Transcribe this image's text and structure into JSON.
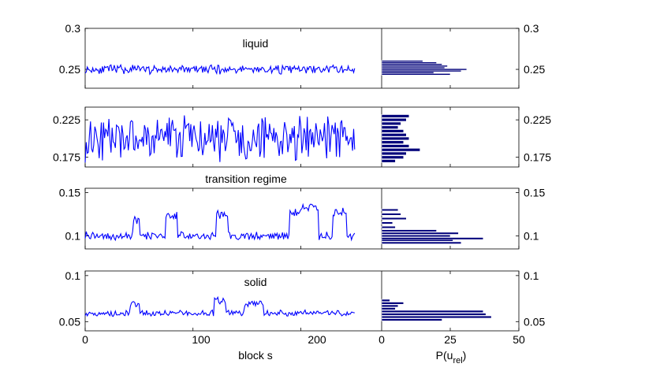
{
  "colors": {
    "series": "#0000ff",
    "histogram": "#00007a",
    "axes": "#000000",
    "background": "#ffffff"
  },
  "x_axis": {
    "label": "block s",
    "ticks": [
      "0",
      "100",
      "200"
    ],
    "range": [
      0,
      275
    ]
  },
  "hist_axis": {
    "label_main": "P(u",
    "label_sub": "rel",
    "label_close": ")",
    "ticks": [
      "0",
      "25",
      "50"
    ],
    "range": [
      0,
      50
    ]
  },
  "chart_data": [
    {
      "type": "line",
      "title": "liquid",
      "ylim": [
        0.227,
        0.3
      ],
      "yticks": [
        "0.3",
        "0.25"
      ],
      "ytick_values": [
        0.3,
        0.25
      ],
      "signal": {
        "base": 0.25,
        "amp": 0.0045,
        "levels": [],
        "seed": 11
      },
      "histogram": {
        "type": "bar",
        "y": [
          0.244,
          0.246,
          0.248,
          0.25,
          0.252,
          0.254,
          0.256,
          0.258,
          0.26
        ],
        "counts": [
          25,
          19,
          29,
          31,
          23,
          24,
          22,
          20,
          15
        ]
      }
    },
    {
      "type": "line",
      "title": "",
      "ylim": [
        0.162,
        0.242
      ],
      "yticks": [
        "0.225",
        "0.175"
      ],
      "ytick_values": [
        0.225,
        0.175
      ],
      "signal": {
        "base": 0.2,
        "amp": 0.024,
        "levels": [],
        "seed": 23
      },
      "histogram": {
        "type": "bar",
        "y": [
          0.17,
          0.175,
          0.18,
          0.185,
          0.19,
          0.195,
          0.2,
          0.205,
          0.21,
          0.215,
          0.22,
          0.225,
          0.23
        ],
        "counts": [
          5,
          8,
          9,
          14,
          10,
          8,
          10,
          9,
          8,
          6,
          7,
          9,
          10
        ]
      }
    },
    {
      "type": "line",
      "title": "transition regime",
      "ylim": [
        0.085,
        0.155
      ],
      "yticks": [
        "0.15",
        "0.1"
      ],
      "ytick_values": [
        0.15,
        0.1
      ],
      "signal": {
        "base": 0.1,
        "amp": 0.004,
        "levels": [
          [
            45,
            50,
            0.117
          ],
          [
            75,
            85,
            0.124
          ],
          [
            122,
            132,
            0.125
          ],
          [
            190,
            200,
            0.127
          ],
          [
            200,
            216,
            0.133
          ],
          [
            230,
            242,
            0.128
          ]
        ],
        "seed": 37
      },
      "histogram": {
        "type": "bar",
        "y": [
          0.092,
          0.095,
          0.097,
          0.1,
          0.103,
          0.106,
          0.11,
          0.115,
          0.12,
          0.125,
          0.13
        ],
        "counts": [
          29,
          26,
          37,
          25,
          28,
          20,
          5,
          4,
          9,
          7,
          6
        ]
      }
    },
    {
      "type": "line",
      "title": "solid",
      "ylim": [
        0.04,
        0.105
      ],
      "yticks": [
        "0.1",
        "0.05"
      ],
      "ytick_values": [
        0.1,
        0.05
      ],
      "signal": {
        "base": 0.059,
        "amp": 0.003,
        "levels": [
          [
            42,
            50,
            0.069
          ],
          [
            120,
            130,
            0.073
          ],
          [
            148,
            165,
            0.069
          ]
        ],
        "seed": 51
      },
      "histogram": {
        "type": "bar",
        "y": [
          0.052,
          0.055,
          0.058,
          0.061,
          0.064,
          0.067,
          0.07,
          0.073
        ],
        "counts": [
          22,
          40,
          38,
          37,
          5,
          6,
          8,
          3
        ]
      }
    }
  ]
}
